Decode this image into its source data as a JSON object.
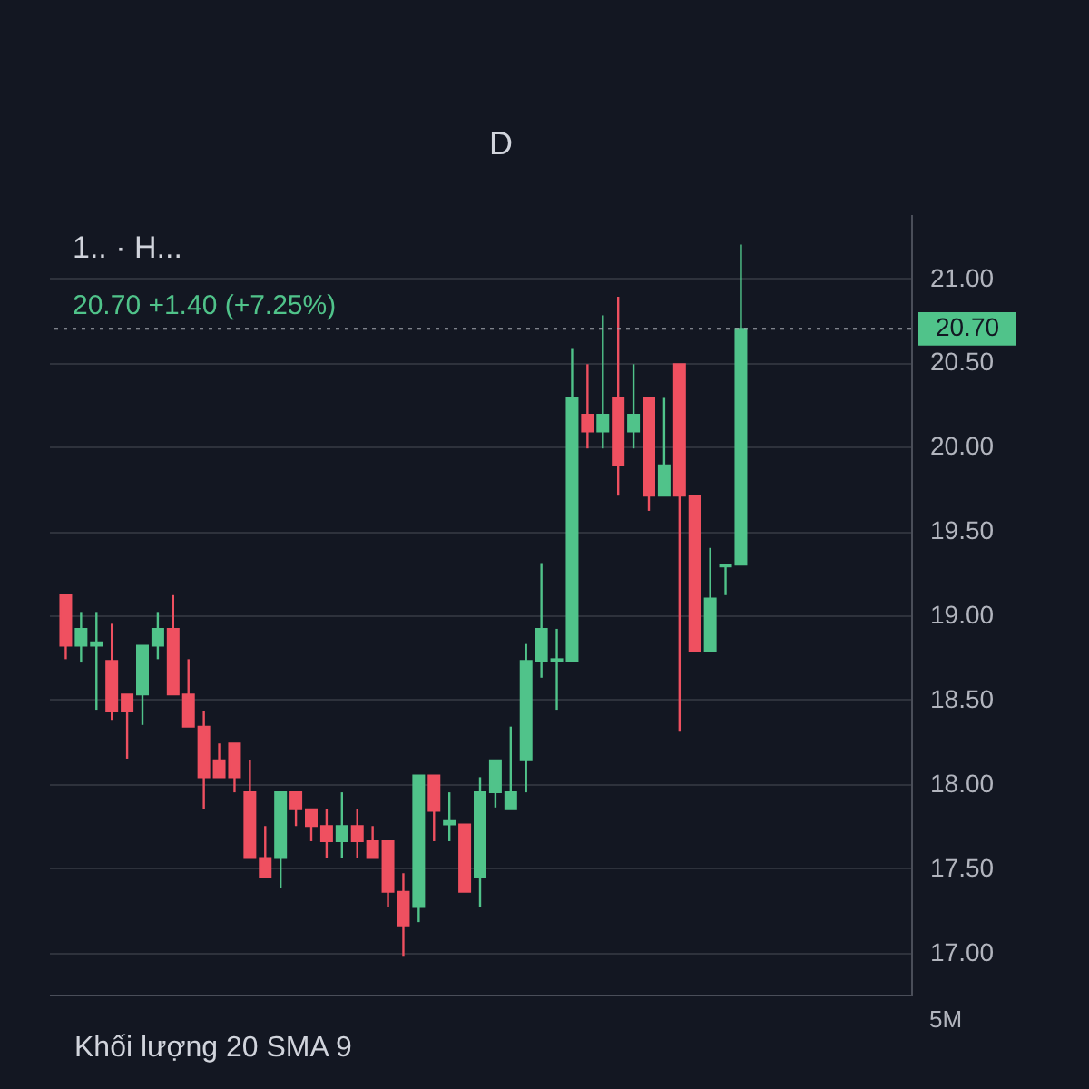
{
  "chart_data": {
    "type": "candlestick",
    "title": "1.. · H...",
    "subtitle": "20.70 +1.40 (+7.25%)",
    "categories": [
      null,
      null,
      null,
      null,
      null,
      null,
      null,
      null,
      null,
      null,
      null,
      null,
      null,
      null,
      null,
      null,
      null,
      null,
      null,
      null,
      null,
      null,
      null,
      null,
      null,
      null,
      null,
      null,
      null,
      null,
      null,
      null,
      null,
      null,
      null,
      null,
      null,
      null,
      null,
      null,
      null,
      null,
      null,
      null,
      null,
      null,
      null,
      null,
      null,
      null,
      null,
      null,
      null,
      null,
      null
    ],
    "ohlc": [
      [
        19.12,
        19.12,
        18.74,
        18.82
      ],
      [
        18.82,
        19.02,
        18.72,
        18.92
      ],
      [
        18.82,
        19.02,
        18.44,
        18.84
      ],
      [
        18.73,
        18.95,
        18.38,
        18.43
      ],
      [
        18.53,
        18.53,
        18.15,
        18.43
      ],
      [
        18.53,
        18.82,
        18.35,
        18.82
      ],
      [
        18.82,
        19.02,
        18.74,
        18.92
      ],
      [
        18.92,
        19.12,
        18.53,
        18.53
      ],
      [
        18.53,
        18.74,
        18.34,
        18.34
      ],
      [
        18.34,
        18.43,
        17.85,
        18.04
      ],
      [
        18.14,
        18.24,
        18.04,
        18.04
      ],
      [
        18.24,
        18.24,
        17.95,
        18.04
      ],
      [
        17.95,
        18.14,
        17.56,
        17.56
      ],
      [
        17.56,
        17.75,
        17.45,
        17.45
      ],
      [
        17.56,
        17.95,
        17.38,
        17.95
      ],
      [
        17.95,
        17.95,
        17.75,
        17.85
      ],
      [
        17.85,
        17.85,
        17.66,
        17.75
      ],
      [
        17.75,
        17.85,
        17.56,
        17.66
      ],
      [
        17.66,
        17.95,
        17.56,
        17.75
      ],
      [
        17.75,
        17.85,
        17.56,
        17.66
      ],
      [
        17.66,
        17.75,
        17.56,
        17.56
      ],
      [
        17.66,
        17.66,
        17.27,
        17.36
      ],
      [
        17.36,
        17.47,
        16.98,
        17.16
      ],
      [
        17.27,
        18.05,
        17.18,
        18.05
      ],
      [
        18.05,
        18.05,
        17.66,
        17.84
      ],
      [
        17.76,
        17.95,
        17.66,
        17.78
      ],
      [
        17.76,
        17.76,
        17.36,
        17.36
      ],
      [
        17.45,
        18.04,
        17.27,
        17.95
      ],
      [
        17.95,
        18.14,
        17.86,
        18.14
      ],
      [
        17.85,
        18.34,
        17.85,
        17.95
      ],
      [
        18.14,
        18.83,
        17.95,
        18.73
      ],
      [
        18.73,
        19.31,
        18.63,
        18.92
      ],
      [
        18.73,
        18.92,
        18.44,
        18.74
      ],
      [
        18.73,
        20.58,
        18.73,
        20.29
      ],
      [
        20.19,
        20.49,
        19.99,
        20.09
      ],
      [
        20.09,
        20.78,
        19.99,
        20.19
      ],
      [
        20.29,
        20.89,
        19.71,
        19.89
      ],
      [
        20.09,
        20.49,
        19.99,
        20.19
      ],
      [
        20.29,
        20.29,
        19.62,
        19.71
      ],
      [
        19.71,
        20.29,
        19.71,
        19.89
      ],
      [
        20.49,
        20.49,
        18.31,
        19.71
      ],
      [
        19.71,
        19.71,
        18.79,
        18.79
      ],
      [
        18.79,
        19.4,
        18.79,
        19.1
      ],
      [
        19.29,
        19.3,
        19.12,
        19.3
      ],
      [
        19.3,
        21.2,
        19.3,
        20.7
      ],
      null,
      null,
      null,
      null,
      null,
      null,
      null,
      null,
      null,
      null
    ],
    "colors": [
      "#ef5060",
      "#50c38a",
      "#50c38a",
      "#ef5060",
      "#ef5060",
      "#50c38a",
      "#50c38a",
      "#ef5060",
      "#ef5060",
      "#ef5060",
      "#ef5060",
      "#ef5060",
      "#ef5060",
      "#ef5060",
      "#50c38a",
      "#ef5060",
      "#ef5060",
      "#ef5060",
      "#50c38a",
      "#ef5060",
      "#ef5060",
      "#ef5060",
      "#ef5060",
      "#50c38a",
      "#ef5060",
      "#50c38a",
      "#ef5060",
      "#50c38a",
      "#50c38a",
      "#50c38a",
      "#50c38a",
      "#50c38a",
      "#50c38a",
      "#50c38a",
      "#ef5060",
      "#50c38a",
      "#ef5060",
      "#50c38a",
      "#ef5060",
      "#50c38a",
      "#ef5060",
      "#ef5060",
      "#50c38a",
      "#50c38a",
      "#50c38a",
      null,
      null,
      null,
      null,
      null,
      null,
      null,
      null,
      null,
      null
    ],
    "ylim": [
      16.75,
      21.38
    ],
    "yticks": [
      {
        "value": 17,
        "label": "17.00"
      },
      {
        "value": 17.5,
        "label": "17.50"
      },
      {
        "value": 18,
        "label": "18.00"
      },
      {
        "value": 18.5,
        "label": "18.50"
      },
      {
        "value": 19,
        "label": "19.00"
      },
      {
        "value": 19.5,
        "label": "19.50"
      },
      {
        "value": 20,
        "label": "20.00"
      },
      {
        "value": 20.5,
        "label": "20.50"
      },
      {
        "value": 21,
        "label": "21.00"
      }
    ],
    "grid": "y",
    "tick_labels": "y",
    "ref_lines": [
      {
        "axis": "y",
        "value": 20.7,
        "label": "20.70",
        "color": "#a3a6af",
        "line_style": "dotted"
      }
    ],
    "annotations": [
      "D",
      "Khối lượng 20 SMA 9",
      "5M"
    ]
  }
}
